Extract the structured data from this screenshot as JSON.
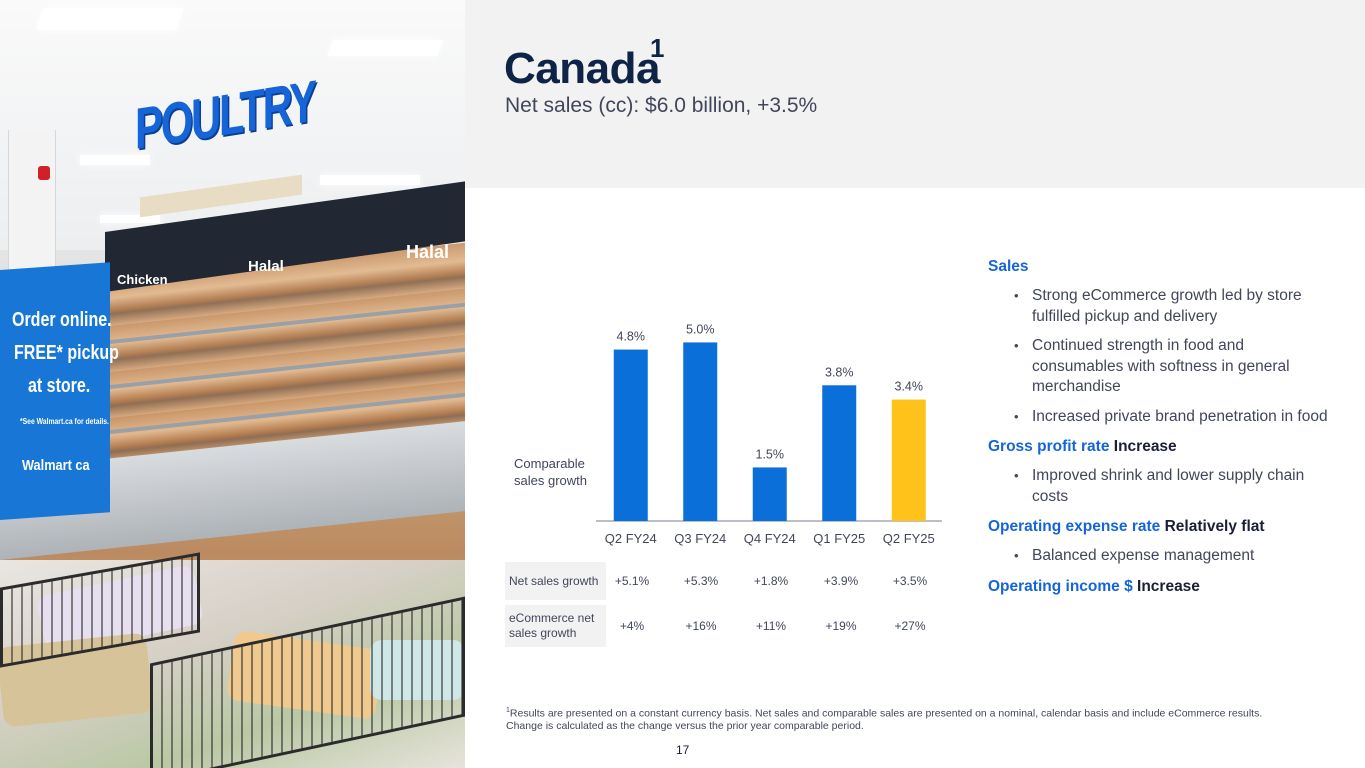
{
  "header": {
    "title": "Canada",
    "title_sup": "1",
    "subtitle": "Net sales (cc): $6.0 billion, +3.5%"
  },
  "photo": {
    "sign": "POULTRY",
    "case_labels": [
      "Chicken",
      "Halal",
      "Halal"
    ],
    "banner_lines": [
      "Order online.",
      "FREE* pickup",
      "at store.",
      "*See Walmart.ca for details.",
      "Walmart ca"
    ]
  },
  "chart_data": {
    "type": "bar",
    "categories": [
      "Q2 FY24",
      "Q3 FY24",
      "Q4 FY24",
      "Q1 FY25",
      "Q2 FY25"
    ],
    "values": [
      4.8,
      5.0,
      1.5,
      3.8,
      3.4
    ],
    "data_labels": [
      "4.8%",
      "5.0%",
      "1.5%",
      "3.8%",
      "3.4%"
    ],
    "ylabel": "Comparable sales growth",
    "ylim": [
      0,
      5.6
    ],
    "colors": [
      "#0a6fd8",
      "#0a6fd8",
      "#0a6fd8",
      "#0a6fd8",
      "#ffc21a"
    ],
    "highlight_index": 4
  },
  "table": {
    "rows": [
      {
        "label": "Net sales growth",
        "values": [
          "+5.1%",
          "+5.3%",
          "+1.8%",
          "+3.9%",
          "+3.5%"
        ]
      },
      {
        "label": "eCommerce net sales growth",
        "values": [
          "+4%",
          "+16%",
          "+11%",
          "+19%",
          "+27%"
        ]
      }
    ]
  },
  "commentary": {
    "sales": {
      "head": "Sales",
      "bullets": [
        "Strong eCommerce growth led by store fulfilled pickup and delivery",
        "Continued strength in food and consumables with softness in general merchandise",
        "Increased private brand penetration in food"
      ]
    },
    "gross": {
      "head": "Gross profit rate",
      "value": "Increase",
      "bullets": [
        "Improved shrink and lower supply chain costs"
      ]
    },
    "opex": {
      "head": "Operating expense rate",
      "value": "Relatively flat",
      "bullets": [
        "Balanced expense management"
      ]
    },
    "opinc": {
      "head": "Operating income $",
      "value": "Increase"
    }
  },
  "footnote": {
    "sup": "1",
    "text": "Results are presented on a constant currency basis. Net sales and comparable sales are presented on a nominal, calendar basis and include eCommerce results. Change is calculated as the change versus the prior year comparable period."
  },
  "page_number": "17"
}
